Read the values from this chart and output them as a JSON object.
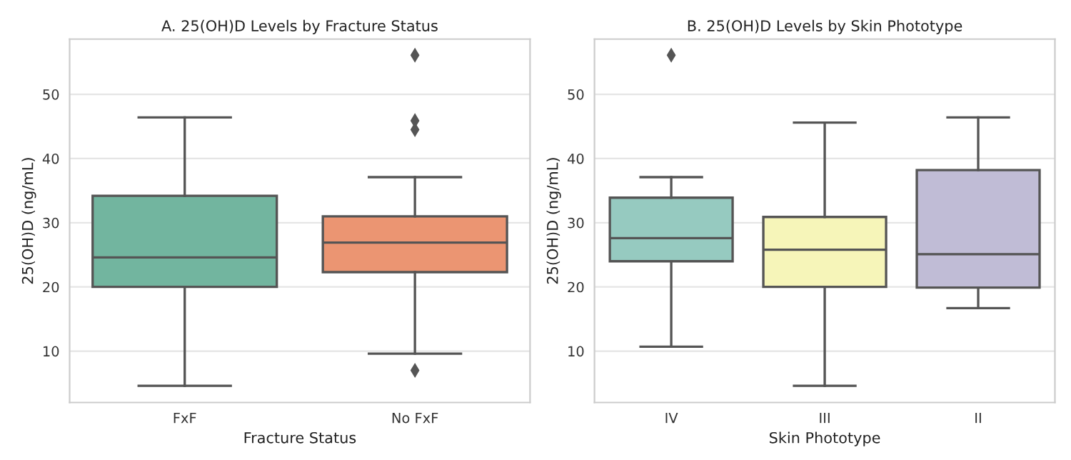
{
  "chart_data": [
    {
      "type": "box",
      "title": "A. 25(OH)D Levels by Fracture Status",
      "xlabel": "Fracture Status",
      "ylabel": "25(OH)D (ng/mL)",
      "categories": [
        "FxF",
        "No FxF"
      ],
      "colors": [
        "#72b59f",
        "#eb9572"
      ],
      "ylim": [
        2,
        58.6
      ],
      "yticks": [
        10,
        20,
        30,
        40,
        50
      ],
      "grid": "y",
      "marker": "diamond",
      "boxes": [
        {
          "low": 4.6,
          "q1": 20.0,
          "median": 24.6,
          "q3": 34.2,
          "high": 46.4
        },
        {
          "low": 9.6,
          "q1": 22.3,
          "median": 26.9,
          "q3": 31.0,
          "high": 37.1,
          "outliers": [
            56.1,
            45.9,
            44.5,
            7.0
          ]
        }
      ]
    },
    {
      "type": "box",
      "title": "B. 25(OH)D Levels by Skin Phototype",
      "xlabel": "Skin Phototype",
      "ylabel": "25(OH)D (ng/mL)",
      "categories": [
        "IV",
        "III",
        "II"
      ],
      "colors": [
        "#96cac0",
        "#f6f5b9",
        "#c0bcd6"
      ],
      "ylim": [
        2,
        58.6
      ],
      "yticks": [
        10,
        20,
        30,
        40,
        50
      ],
      "grid": "y",
      "marker": "diamond",
      "boxes": [
        {
          "low": 10.7,
          "q1": 24.0,
          "median": 27.6,
          "q3": 33.9,
          "high": 37.1,
          "outliers": [
            56.1
          ]
        },
        {
          "low": 4.6,
          "q1": 20.0,
          "median": 25.8,
          "q3": 30.9,
          "high": 45.6
        },
        {
          "low": 16.7,
          "q1": 19.9,
          "median": 25.1,
          "q3": 38.2,
          "high": 46.4
        }
      ]
    }
  ]
}
